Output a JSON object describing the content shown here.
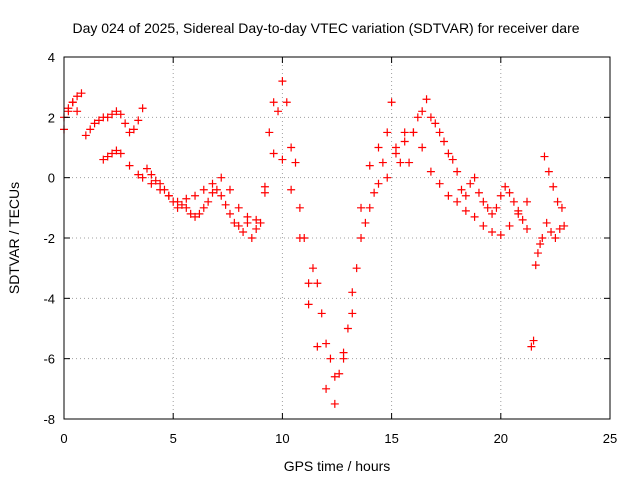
{
  "chart_data": {
    "type": "scatter",
    "title": "Day 024 of 2025, Sidereal Day-to-day VTEC variation (SDTVAR) for receiver dare",
    "xlabel": "GPS time / hours",
    "ylabel": "SDTVAR / TECUs",
    "xlim": [
      0,
      25
    ],
    "ylim": [
      -8,
      4
    ],
    "xticks": [
      "0",
      "5",
      "10",
      "15",
      "20",
      "25"
    ],
    "yticks": [
      "-8",
      "-6",
      "-4",
      "-2",
      "0",
      "2",
      "4"
    ],
    "grid": true,
    "marker": "+",
    "series": [
      {
        "name": "SDTVAR",
        "color": "#ff0000",
        "x": [
          0.0,
          0.2,
          0.4,
          0.6,
          0.8,
          1.0,
          1.2,
          1.4,
          1.6,
          1.8,
          2.0,
          2.2,
          2.4,
          2.6,
          2.8,
          3.0,
          3.2,
          3.4,
          3.6,
          3.8,
          4.0,
          4.2,
          4.4,
          4.6,
          4.8,
          5.0,
          5.2,
          5.4,
          5.6,
          5.8,
          6.0,
          6.2,
          6.4,
          6.6,
          6.8,
          7.0,
          7.2,
          7.4,
          7.6,
          7.8,
          8.0,
          8.2,
          8.4,
          8.6,
          8.8,
          9.0,
          9.2,
          9.4,
          9.6,
          9.8,
          10.0,
          10.2,
          10.4,
          10.6,
          10.8,
          11.0,
          11.2,
          11.4,
          11.6,
          11.8,
          12.0,
          12.2,
          12.4,
          12.6,
          12.8,
          13.0,
          13.2,
          13.4,
          13.6,
          13.8,
          14.0,
          14.2,
          14.4,
          14.6,
          14.8,
          15.0,
          15.2,
          15.4,
          15.6,
          15.8,
          16.0,
          16.2,
          16.4,
          16.6,
          16.8,
          17.0,
          17.2,
          17.4,
          17.6,
          17.8,
          18.0,
          18.2,
          18.4,
          18.6,
          18.8,
          19.0,
          19.2,
          19.4,
          19.6,
          19.8,
          20.0,
          20.2,
          20.4,
          20.6,
          20.8,
          21.0,
          21.2,
          21.4,
          21.6,
          21.8,
          22.0,
          22.2,
          22.4,
          22.6,
          22.8,
          0.0,
          0.2,
          0.4,
          0.6,
          1.8,
          2.0,
          2.2,
          2.4,
          2.6,
          3.0,
          3.4,
          3.6,
          4.0,
          4.4,
          4.8,
          5.2,
          5.6,
          6.0,
          6.4,
          6.8,
          7.2,
          7.6,
          8.0,
          8.4,
          8.8,
          9.2,
          9.6,
          10.0,
          10.4,
          10.8,
          11.2,
          11.6,
          12.0,
          12.4,
          12.8,
          13.2,
          13.6,
          14.0,
          14.4,
          14.8,
          15.2,
          15.6,
          16.0,
          16.4,
          16.8,
          17.2,
          17.6,
          18.0,
          18.4,
          18.8,
          19.2,
          19.6,
          20.0,
          20.4,
          20.8,
          21.2,
          21.5,
          21.7,
          21.9,
          22.1,
          22.3,
          22.5,
          22.7,
          22.9
        ],
        "y": [
          1.6,
          2.2,
          2.5,
          2.7,
          2.8,
          1.4,
          1.6,
          1.8,
          1.9,
          2.0,
          2.0,
          2.1,
          2.2,
          2.1,
          1.8,
          1.5,
          1.6,
          1.9,
          2.3,
          0.3,
          0.1,
          -0.1,
          -0.2,
          -0.4,
          -0.6,
          -0.8,
          -1.0,
          -0.9,
          -1.0,
          -1.2,
          -1.3,
          -1.2,
          -1.0,
          -0.8,
          -0.5,
          -0.4,
          -0.6,
          -0.9,
          -1.2,
          -1.5,
          -1.6,
          -1.8,
          -1.5,
          -2.0,
          -1.7,
          -1.5,
          -0.5,
          1.5,
          2.5,
          2.2,
          3.2,
          2.5,
          1.0,
          0.5,
          -1.0,
          -2.0,
          -3.5,
          -3.0,
          -3.5,
          -4.5,
          -5.5,
          -6.0,
          -7.5,
          -6.5,
          -6.0,
          -5.0,
          -4.5,
          -3.0,
          -2.0,
          -1.5,
          -1.0,
          -0.5,
          -0.2,
          0.5,
          1.5,
          2.5,
          1.0,
          0.5,
          1.5,
          0.5,
          1.5,
          2.0,
          2.2,
          2.6,
          2.0,
          1.8,
          1.5,
          1.2,
          0.8,
          0.6,
          0.2,
          -0.4,
          -0.6,
          -0.2,
          0.0,
          -0.5,
          -0.8,
          -1.0,
          -1.2,
          -1.0,
          -0.6,
          -0.3,
          -0.5,
          -0.8,
          -1.1,
          -1.4,
          -1.7,
          -5.6,
          -2.9,
          -2.2,
          0.7,
          0.2,
          -0.3,
          -0.8,
          -1.0,
          2.0,
          2.3,
          2.5,
          2.2,
          0.6,
          0.7,
          0.8,
          0.9,
          0.8,
          0.4,
          0.1,
          0.0,
          -0.2,
          -0.4,
          -0.6,
          -0.8,
          -0.7,
          -0.6,
          -0.4,
          -0.2,
          0.0,
          -0.4,
          -1.0,
          -1.3,
          -1.4,
          -0.3,
          0.8,
          0.6,
          -0.4,
          -2.0,
          -4.2,
          -5.6,
          -7.0,
          -6.6,
          -5.8,
          -3.8,
          -1.0,
          0.4,
          1.0,
          0.0,
          0.8,
          1.2,
          1.5,
          1.0,
          0.2,
          -0.2,
          -0.6,
          -0.8,
          -1.1,
          -1.3,
          -1.6,
          -1.8,
          -1.9,
          -1.6,
          -1.2,
          -0.8,
          -5.4,
          -2.5,
          -2.0,
          -1.5,
          -1.8,
          -2.0,
          -1.7,
          -1.6
        ]
      }
    ]
  }
}
